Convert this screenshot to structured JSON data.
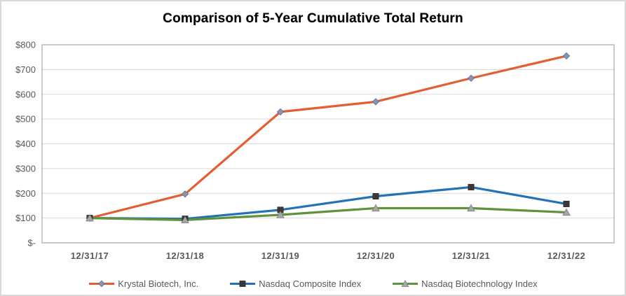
{
  "title": "Comparison of 5-Year Cumulative Total Return",
  "chart_data": {
    "type": "line",
    "x": [
      "12/31/17",
      "12/31/18",
      "12/31/19",
      "12/31/20",
      "12/31/21",
      "12/31/22"
    ],
    "series": [
      {
        "name": "Krystal Biotech, Inc.",
        "values": [
          100,
          197,
          529,
          570,
          665,
          755
        ],
        "color": "#e35e33",
        "marker": "diamond",
        "marker_fill": "#8496b0",
        "marker_stroke": "#5f6f8e"
      },
      {
        "name": "Nasdaq Composite Index",
        "values": [
          100,
          97,
          133,
          188,
          225,
          157
        ],
        "color": "#2272b5",
        "marker": "square",
        "marker_fill": "#3b3838",
        "marker_stroke": "#262424"
      },
      {
        "name": "Nasdaq Biotechnology Index",
        "values": [
          100,
          92,
          113,
          140,
          140,
          123
        ],
        "color": "#61923b",
        "marker": "triangle",
        "marker_fill": "#a6a6a6",
        "marker_stroke": "#7f7f7f"
      }
    ],
    "ylim": [
      0,
      800
    ],
    "ytick_step": 100,
    "ytick_labels": [
      "$-",
      "$100",
      "$200",
      "$300",
      "$400",
      "$500",
      "$600",
      "$700",
      "$800"
    ],
    "xlabel": "",
    "ylabel": "",
    "grid": true,
    "legend_position": "bottom",
    "colors": {
      "gridline": "#d9d9d9",
      "plot_border": "#a6a6a6",
      "axis_text": "#595959",
      "title_text": "#000000",
      "background": "#ffffff",
      "figure_border": "#d9d9d9"
    }
  }
}
